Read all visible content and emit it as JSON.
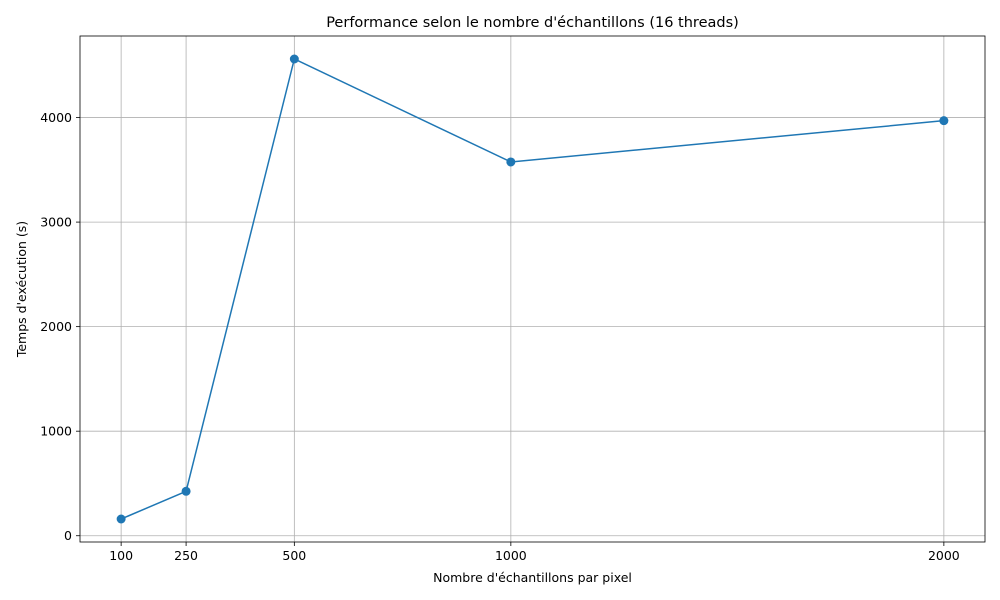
{
  "chart_data": {
    "type": "line",
    "title": "Performance selon le nombre d'échantillons (16 threads)",
    "xlabel": "Nombre d'échantillons par pixel",
    "ylabel": "Temps d'exécution (s)",
    "xlim": [
      5,
      2095
    ],
    "ylim": [
      -60,
      4780
    ],
    "xticks": [
      100,
      250,
      500,
      1000,
      2000
    ],
    "yticks": [
      0,
      1000,
      2000,
      3000,
      4000
    ],
    "grid": true,
    "series": [
      {
        "color": "#1f77b4",
        "marker": "circle",
        "x": [
          100,
          250,
          500,
          1000,
          2000
        ],
        "y": [
          160,
          425,
          4560,
          3575,
          3970
        ]
      }
    ]
  }
}
